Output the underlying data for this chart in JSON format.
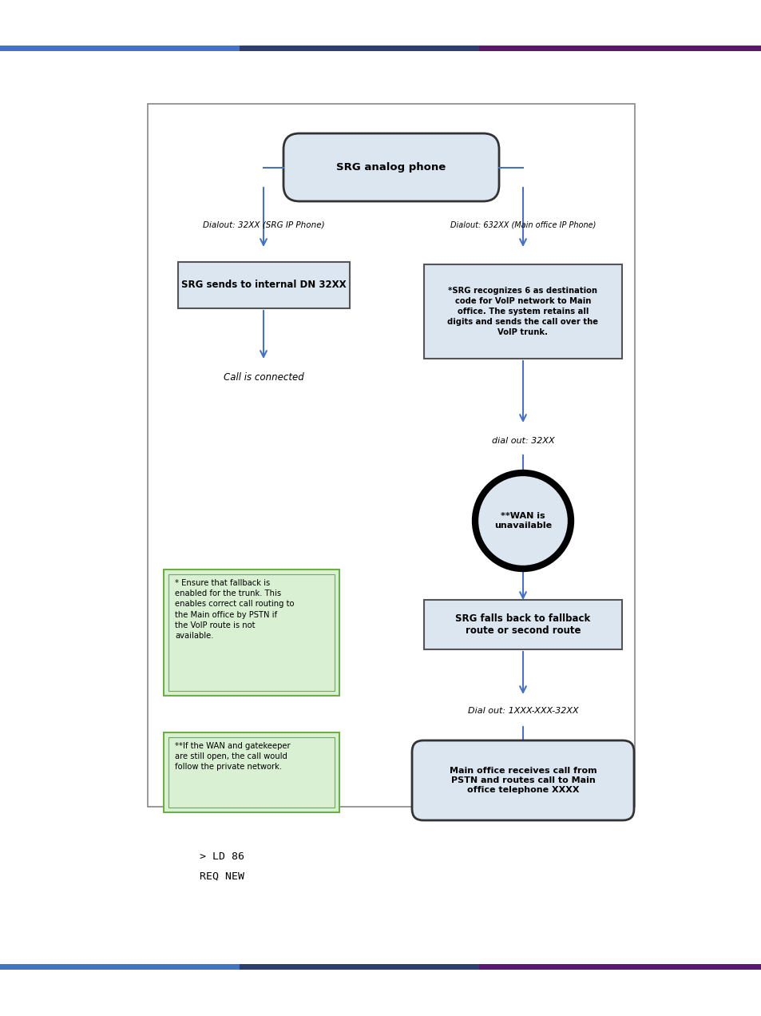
{
  "bg_color": "#ffffff",
  "box_bg_light": "#dce6f1",
  "box_bg_green": "#d9f0d3",
  "box_border_green": "#70ad47",
  "arrow_color": "#4472c4",
  "code_text_line1": "> LD 86",
  "code_text_line2": "REQ NEW",
  "title_node": "SRG analog phone",
  "left_label": "Dialout: 32XX (SRG IP Phone)",
  "right_label": "Dialout: 632XX (Main office IP Phone)",
  "left_box1": "SRG sends to internal DN 32XX",
  "left_label2": "Call is connected",
  "right_box1": "*SRG recognizes 6 as destination\ncode for VoIP network to Main\noffice. The system retains all\ndigits and sends the call over the\nVoIP trunk.",
  "right_label2": "dial out: 32XX",
  "circle_text": "**WAN is\nunavailable",
  "right_box2": "SRG falls back to fallback\nroute or second route",
  "right_label3": "Dial out: 1XXX-XXX-32XX",
  "right_box3": "Main office receives call from\nPSTN and routes call to Main\noffice telephone XXXX",
  "green_box1": "* Ensure that fallback is\nenabled for the trunk. This\nenables correct call routing to\nthe Main office by PSTN if\nthe VoIP route is not\navailable.",
  "green_box2": "**If the WAN and gatekeeper\nare still open, the call would\nfollow the private network."
}
